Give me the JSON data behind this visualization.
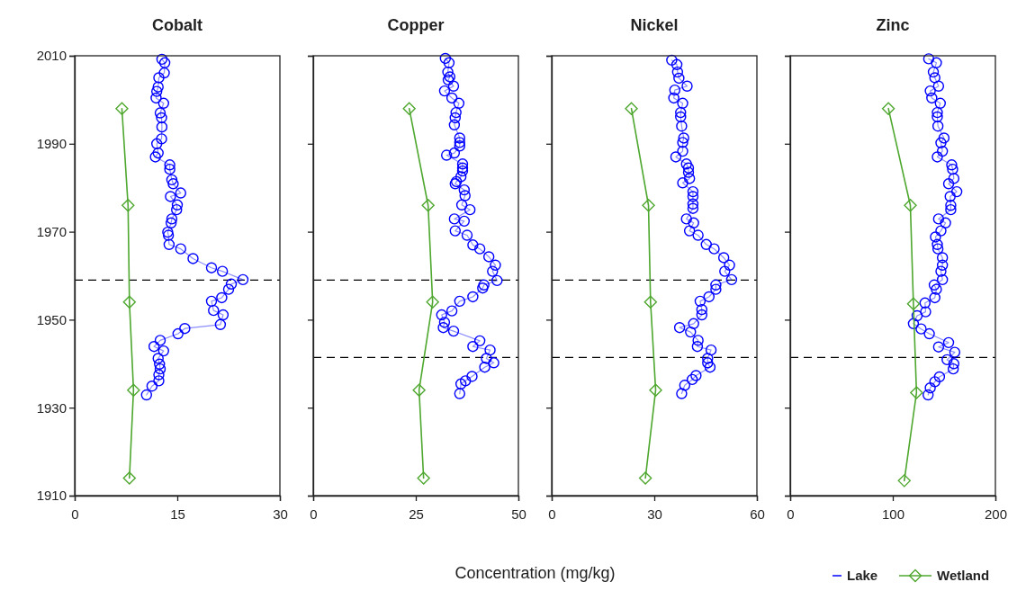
{
  "chart_data": [
    {
      "type": "line",
      "title": "Cobalt",
      "legend": "bottom right",
      "xlim": [
        0,
        30
      ],
      "xticks": [
        0,
        15,
        30
      ],
      "ylim": [
        1910,
        2010
      ],
      "yticks": [
        1910,
        1930,
        1950,
        1970,
        1990,
        2010
      ],
      "ref_lines": [
        {
          "axis": "y",
          "value": 1959,
          "line_style": "dashed",
          "color": "#000000"
        }
      ],
      "series": [
        {
          "name": "Lake",
          "color": "#0000ff",
          "marker": "circle",
          "x": [
            12.75,
            13.17,
            13.1,
            12.3,
            12.2,
            12.0,
            11.9,
            13.0,
            12.5,
            12.7,
            12.75,
            12.7,
            12.0,
            12.2,
            11.8,
            13.9,
            13.9,
            14.2,
            14.4,
            15.5,
            14.0,
            15.0,
            14.9,
            14.2,
            14.1,
            13.6,
            13.7,
            13.8,
            15.5,
            17.3,
            20.0,
            21.6,
            24.6,
            22.9,
            22.5,
            21.5,
            20.0,
            20.3,
            21.7,
            21.3,
            16.1,
            15.1,
            12.5,
            11.6,
            13.0,
            12.2,
            12.4,
            12.5,
            12.3,
            12.3,
            11.3,
            10.5
          ],
          "values": [
            2009.2,
            2008.4,
            2006.1,
            2005.0,
            2002.9,
            2001.9,
            2000.4,
            1999.2,
            1997.0,
            1995.9,
            1993.8,
            1991.1,
            1990.0,
            1987.9,
            1987.0,
            1985.2,
            1984.2,
            1981.8,
            1980.9,
            1978.8,
            1978.0,
            1976.1,
            1975.0,
            1972.9,
            1972.0,
            1969.9,
            1969.2,
            1967.1,
            1966.1,
            1963.9,
            1961.8,
            1961.0,
            1959.1,
            1958.1,
            1956.9,
            1955.0,
            1954.2,
            1952.1,
            1951.1,
            1948.9,
            1948.0,
            1946.8,
            1945.3,
            1943.9,
            1942.9,
            1941.2,
            1939.9,
            1938.8,
            1937.5,
            1936.1,
            1934.9,
            1932.9
          ]
        },
        {
          "name": "Wetland",
          "color": "#4ea72e",
          "marker": "diamond",
          "x": [
            6.9,
            7.8,
            8.0,
            8.6,
            8.0
          ],
          "values": [
            1998,
            1976,
            1954,
            1934,
            1914
          ]
        }
      ]
    },
    {
      "type": "line",
      "title": "Copper",
      "xlabel": "Concentration (mg/kg)",
      "xlim": [
        0,
        50
      ],
      "xticks": [
        0,
        25,
        50
      ],
      "ylim": [
        1910,
        2010
      ],
      "yticks": [
        1910,
        1930,
        1950,
        1970,
        1990,
        2010
      ],
      "tick_labels": "x",
      "ref_lines": [
        {
          "axis": "y",
          "value": 1959,
          "line_style": "dashed",
          "color": "#000000"
        },
        {
          "axis": "y",
          "value": 1941.4,
          "line_style": "dashed",
          "color": "#000000"
        }
      ],
      "series": [
        {
          "color": "#0000ff",
          "marker": "circle",
          "x": [
            32.2,
            33.1,
            32.8,
            33.3,
            32.9,
            34.2,
            32.0,
            33.8,
            35.5,
            34.8,
            34.6,
            34.4,
            35.7,
            35.7,
            35.7,
            34.4,
            32.5,
            36.4,
            36.4,
            36.4,
            36.0,
            34.9,
            34.6,
            36.8,
            37.0,
            36.2,
            38.2,
            34.4,
            36.8,
            34.6,
            37.5,
            38.9,
            40.6,
            42.8,
            44.4,
            43.7,
            44.8,
            41.6,
            41.3,
            38.9,
            35.7,
            33.8,
            31.3,
            32.0,
            31.7,
            34.2,
            40.6,
            38.9,
            43.1,
            42.2,
            44.0,
            41.8,
            38.7,
            37.1,
            36.0,
            35.7
          ],
          "values": [
            2009.4,
            2008.4,
            2006.3,
            2005.2,
            2004.5,
            2003.1,
            2002.0,
            2000.4,
            1999.2,
            1997.1,
            1995.9,
            1994.3,
            1991.3,
            1990.3,
            1989.5,
            1987.9,
            1987.4,
            1985.4,
            1984.5,
            1983.8,
            1982.5,
            1981.4,
            1980.9,
            1979.5,
            1978.2,
            1976.1,
            1975.0,
            1972.9,
            1972.4,
            1970.2,
            1969.2,
            1967.0,
            1966.1,
            1964.3,
            1962.4,
            1961.0,
            1958.9,
            1957.9,
            1957.2,
            1955.2,
            1954.2,
            1952.0,
            1951.1,
            1949.4,
            1948.2,
            1947.4,
            1945.2,
            1943.9,
            1943.1,
            1941.2,
            1940.2,
            1939.2,
            1937.1,
            1936.1,
            1935.4,
            1933.2
          ]
        },
        {
          "color": "#4ea72e",
          "marker": "diamond",
          "x": [
            23.4,
            28.0,
            29.1,
            25.8,
            26.9
          ],
          "values": [
            1998,
            1976,
            1954,
            1934,
            1914
          ]
        }
      ]
    },
    {
      "type": "line",
      "title": "Nickel",
      "xlim": [
        0,
        60
      ],
      "xticks": [
        0,
        30,
        60
      ],
      "ylim": [
        1910,
        2010
      ],
      "yticks": [
        1910,
        1930,
        1950,
        1970,
        1990,
        2010
      ],
      "tick_labels": "x",
      "ref_lines": [
        {
          "axis": "y",
          "value": 1959,
          "line_style": "dashed",
          "color": "#000000"
        },
        {
          "axis": "y",
          "value": 1941.4,
          "line_style": "dashed",
          "color": "#000000"
        }
      ],
      "series": [
        {
          "color": "#0000ff",
          "marker": "circle",
          "x": [
            35.1,
            36.6,
            36.8,
            37.2,
            39.6,
            36.0,
            35.7,
            38.3,
            37.7,
            37.7,
            38.0,
            38.6,
            38.3,
            38.3,
            36.3,
            39.4,
            40.0,
            40.0,
            40.3,
            38.3,
            41.3,
            41.3,
            41.3,
            41.3,
            39.4,
            41.5,
            40.3,
            42.8,
            45.2,
            47.5,
            50.3,
            52.0,
            50.6,
            52.6,
            48.0,
            48.0,
            46.0,
            43.4,
            43.9,
            43.9,
            41.5,
            37.4,
            40.6,
            42.8,
            42.6,
            46.6,
            45.6,
            45.6,
            46.3,
            42.2,
            41.1,
            38.9,
            38.0
          ],
          "values": [
            2009.0,
            2008.0,
            2006.3,
            2004.9,
            2003.1,
            2002.2,
            2000.4,
            1999.2,
            1997.1,
            1996.1,
            1994.0,
            1991.3,
            1990.3,
            1988.3,
            1987.0,
            1985.4,
            1984.5,
            1983.5,
            1982.1,
            1981.1,
            1979.1,
            1978.0,
            1976.3,
            1975.3,
            1972.9,
            1972.0,
            1970.2,
            1969.2,
            1967.1,
            1966.1,
            1964.1,
            1962.4,
            1961.0,
            1959.1,
            1957.9,
            1956.9,
            1955.2,
            1954.2,
            1952.3,
            1951.1,
            1949.1,
            1948.2,
            1947.2,
            1945.3,
            1943.9,
            1943.1,
            1941.2,
            1940.2,
            1939.2,
            1937.3,
            1936.4,
            1935.1,
            1933.2
          ]
        },
        {
          "color": "#4ea72e",
          "marker": "diamond",
          "x": [
            23.3,
            28.3,
            28.9,
            30.4,
            27.4
          ],
          "values": [
            1998,
            1976,
            1954,
            1934,
            1914
          ]
        }
      ]
    },
    {
      "type": "line",
      "title": "Zinc",
      "xlim": [
        0,
        200
      ],
      "xticks": [
        0,
        100,
        200
      ],
      "ylim": [
        1910,
        2010
      ],
      "yticks": [
        1910,
        1930,
        1950,
        1970,
        1990,
        2010
      ],
      "tick_labels": "x",
      "ref_lines": [
        {
          "axis": "y",
          "value": 1941.4,
          "line_style": "dashed",
          "color": "#000000"
        }
      ],
      "series": [
        {
          "color": "#0000ff",
          "marker": "circle",
          "x": [
            135.0,
            142.5,
            139.5,
            141.0,
            144.6,
            136.5,
            138.0,
            146.3,
            143.4,
            143.4,
            144.0,
            149.9,
            146.9,
            148.4,
            143.4,
            157.4,
            158.3,
            159.5,
            154.4,
            162.4,
            155.9,
            156.5,
            156.5,
            144.6,
            151.4,
            146.9,
            141.6,
            143.4,
            144.0,
            148.4,
            148.4,
            146.9,
            148.4,
            140.4,
            142.5,
            141.0,
            131.4,
            132.0,
            123.7,
            120.1,
            127.6,
            135.6,
            154.4,
            144.6,
            160.4,
            152.9,
            159.5,
            158.9,
            145.5,
            141.0,
            136.5,
            134.4
          ],
          "values": [
            2009.3,
            2008.4,
            2006.3,
            2005.0,
            2003.1,
            2002.0,
            2000.4,
            1999.2,
            1997.1,
            1996.1,
            1994.0,
            1991.3,
            1990.2,
            1988.3,
            1987.0,
            1985.2,
            1984.2,
            1982.1,
            1980.9,
            1979.1,
            1978.0,
            1976.0,
            1975.0,
            1972.9,
            1972.0,
            1970.2,
            1968.8,
            1967.1,
            1966.1,
            1964.1,
            1962.4,
            1961.0,
            1959.1,
            1957.9,
            1956.9,
            1955.0,
            1953.8,
            1951.8,
            1950.9,
            1949.1,
            1947.9,
            1946.8,
            1944.8,
            1943.8,
            1942.6,
            1940.9,
            1940.0,
            1938.8,
            1937.0,
            1935.9,
            1934.5,
            1932.9
          ]
        },
        {
          "color": "#4ea72e",
          "marker": "diamond",
          "x": [
            95.7,
            117.1,
            120.1,
            123.1,
            111.2
          ],
          "values": [
            1998,
            1976,
            1953.6,
            1933.4,
            1913.4
          ]
        }
      ]
    }
  ]
}
